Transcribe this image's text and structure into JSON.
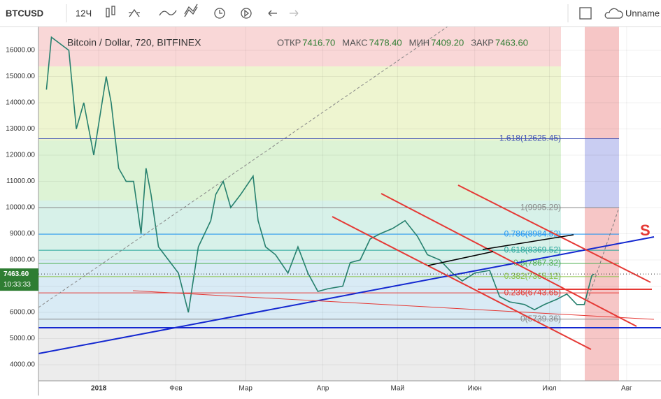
{
  "chart_data": {
    "type": "line",
    "toolbar": {
      "symbol": "BTCUSD",
      "interval": "12Ч",
      "layout_name": "Unname"
    },
    "legend": {
      "title": "Bitcoin / Dollar, 720, BITFINEX",
      "ohlc": [
        {
          "label": "ОТКР",
          "value": "7416.70"
        },
        {
          "label": "МАКС",
          "value": "7478.40"
        },
        {
          "label": "МИН",
          "value": "7409.20"
        },
        {
          "label": "ЗАКР",
          "value": "7463.60"
        }
      ]
    },
    "last_price": {
      "value": 7463.6,
      "label": "7463.60"
    },
    "countdown": "10:33:33",
    "annotation": "S",
    "x": [
      -21,
      -19,
      -12,
      -9,
      -6,
      -2,
      3,
      5,
      8,
      11,
      14,
      17,
      19,
      21,
      24,
      28,
      32,
      36,
      40,
      45,
      47,
      50,
      53,
      57,
      62,
      64,
      67,
      71,
      76,
      80,
      84,
      88,
      92,
      98,
      101,
      105,
      109,
      113,
      118,
      123,
      128,
      132,
      137,
      142,
      146,
      151,
      157,
      161,
      165,
      171,
      175,
      179,
      184,
      188,
      192,
      195,
      198,
      199
    ],
    "series": [
      {
        "name": "BTCUSD",
        "color": "#26806e",
        "values": [
          14500,
          16500,
          16000,
          13000,
          14000,
          12000,
          15000,
          14000,
          11500,
          11000,
          11000,
          9000,
          11500,
          10500,
          8500,
          8000,
          7500,
          6000,
          8500,
          9500,
          10500,
          11000,
          10000,
          10500,
          11200,
          9500,
          8500,
          8200,
          7500,
          8500,
          7500,
          6800,
          6900,
          7000,
          7900,
          8000,
          8800,
          9000,
          9200,
          9500,
          8900,
          8200,
          8000,
          7500,
          7200,
          7500,
          7600,
          6600,
          6400,
          6300,
          6100,
          6300,
          6500,
          6700,
          6300,
          6300,
          7400,
          7463.6
        ]
      }
    ],
    "xlim": [
      -24.2,
      225.8
    ],
    "xticks": [
      {
        "value": 0,
        "label": "2018"
      },
      {
        "value": 31,
        "label": "Фев"
      },
      {
        "value": 59,
        "label": "Мар"
      },
      {
        "value": 90,
        "label": "Апр"
      },
      {
        "value": 120,
        "label": "Май"
      },
      {
        "value": 151,
        "label": "Июн"
      },
      {
        "value": 181,
        "label": "Июл"
      },
      {
        "value": 212,
        "label": "Авг"
      }
    ],
    "ylim": [
      3387,
      16907
    ],
    "yticks": [
      {
        "value": 4000,
        "label": "4000.00"
      },
      {
        "value": 5000,
        "label": "5000.00"
      },
      {
        "value": 6000,
        "label": "6000.00"
      },
      {
        "value": 7000,
        "label": "7000.00"
      },
      {
        "value": 8000,
        "label": "8000.00"
      },
      {
        "value": 9000,
        "label": "9000.00"
      },
      {
        "value": 10000,
        "label": "10000.00"
      },
      {
        "value": 11000,
        "label": "11000.00"
      },
      {
        "value": 12000,
        "label": "12000.00"
      },
      {
        "value": 13000,
        "label": "13000.00"
      },
      {
        "value": 14000,
        "label": "14000.00"
      },
      {
        "value": 15000,
        "label": "15000.00"
      },
      {
        "value": 16000,
        "label": "16000.00"
      }
    ],
    "fib_levels": [
      {
        "value": 12625.45,
        "label": "1.618(12625.45)",
        "color": "#3f51b5"
      },
      {
        "value": 9995.29,
        "label": "1(9995.29)",
        "color": "#888888"
      },
      {
        "value": 8984.52,
        "label": "0.786(8984.52)",
        "color": "#2196f3"
      },
      {
        "value": 8369.52,
        "label": "0.618(8369.52)",
        "color": "#26a69a"
      },
      {
        "value": 7867.32,
        "label": "0.5(7867.32)",
        "color": "#4caf50"
      },
      {
        "value": 7365.12,
        "label": "0.382(7365.12)",
        "color": "#8bc34a"
      },
      {
        "value": 6743.65,
        "label": "0.236(6743.65)",
        "color": "#e53935"
      },
      {
        "value": 5739.36,
        "label": "0(5739.36)",
        "color": "#888888"
      }
    ]
  }
}
